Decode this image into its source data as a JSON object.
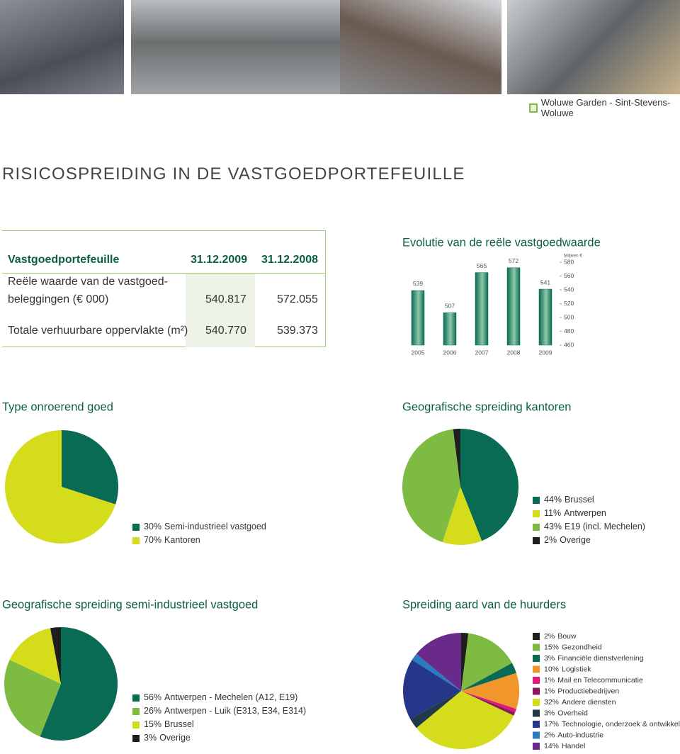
{
  "header": {
    "caption": "Woluwe Garden - Sint-Stevens-Woluwe",
    "title": "RISICOSPREIDING IN DE VASTGOEDPORTEFEUILLE"
  },
  "table": {
    "columns": [
      "Vastgoedportefeuille",
      "31.12.2009",
      "31.12.2008"
    ],
    "rows": [
      [
        [
          "Reële waarde van de vastgoed-",
          "beleggingen (€ 000)"
        ],
        "540.817",
        "572.055"
      ],
      [
        [
          "Totale verhuurbare oppervlakte (m²)"
        ],
        "540.770",
        "539.373"
      ]
    ]
  },
  "chart_data": [
    {
      "type": "bar",
      "title": "Evolutie van de reële vastgoedwaarde",
      "y_label": "Miljoen €",
      "categories": [
        "2005",
        "2006",
        "2007",
        "2008",
        "2009"
      ],
      "values": [
        539,
        507,
        565,
        572,
        541
      ],
      "color": "#0a6b55",
      "ylim": [
        460,
        580
      ],
      "yticks": [
        460,
        480,
        500,
        520,
        540,
        560,
        580
      ]
    },
    {
      "type": "pie",
      "title": "Type onroerend goed",
      "categories": [
        "Semi-industrieel vastgoed",
        "Kantoren"
      ],
      "values": [
        30,
        70
      ],
      "value_labels": [
        "30%",
        "70%"
      ],
      "colors": [
        "#0a6b55",
        "#d4dc1c"
      ]
    },
    {
      "type": "pie",
      "title": "Geografische spreiding kantoren",
      "categories": [
        "Brussel",
        "Antwerpen",
        "E19 (incl. Mechelen)",
        "Overige"
      ],
      "values": [
        44,
        11,
        43,
        2
      ],
      "value_labels": [
        "44%",
        "11%",
        "43%",
        "2%"
      ],
      "colors": [
        "#0a6b55",
        "#d4dc1c",
        "#7dbb42",
        "#1e1e1e"
      ]
    },
    {
      "type": "pie",
      "title": "Geografische spreiding semi-industrieel vastgoed",
      "categories": [
        "Antwerpen - Mechelen (A12, E19)",
        "Antwerpen - Luik (E313, E34, E314)",
        "Brussel",
        "Overige"
      ],
      "values": [
        56,
        26,
        15,
        3
      ],
      "value_labels": [
        "56%",
        "26%",
        "15%",
        "3%"
      ],
      "colors": [
        "#0a6b55",
        "#7dbb42",
        "#d4dc1c",
        "#1e1e1e"
      ]
    },
    {
      "type": "pie",
      "title": "Spreiding aard van de huurders",
      "categories": [
        "Bouw",
        "Gezondheid",
        "Financiële dienstverlening",
        "Logistiek",
        "Mail en Telecommunicatie",
        "Productiebedrijven",
        "Andere diensten",
        "Overheid",
        "Technologie, onderzoek & ontwikkeling",
        "Auto-industrie",
        "Handel"
      ],
      "values": [
        2,
        15,
        3,
        10,
        1,
        1,
        32,
        3,
        17,
        2,
        14
      ],
      "value_labels": [
        "2%",
        "15%",
        "3%",
        "10%",
        "1%",
        "1%",
        "32%",
        "3%",
        "17%",
        "2%",
        "14%"
      ],
      "colors": [
        "#1e1e1e",
        "#7dbb42",
        "#0a6b55",
        "#f0962a",
        "#e0197d",
        "#8b1a5a",
        "#d4dc1c",
        "#1f3a48",
        "#26378a",
        "#2b7bc0",
        "#6a2a8a"
      ]
    }
  ]
}
